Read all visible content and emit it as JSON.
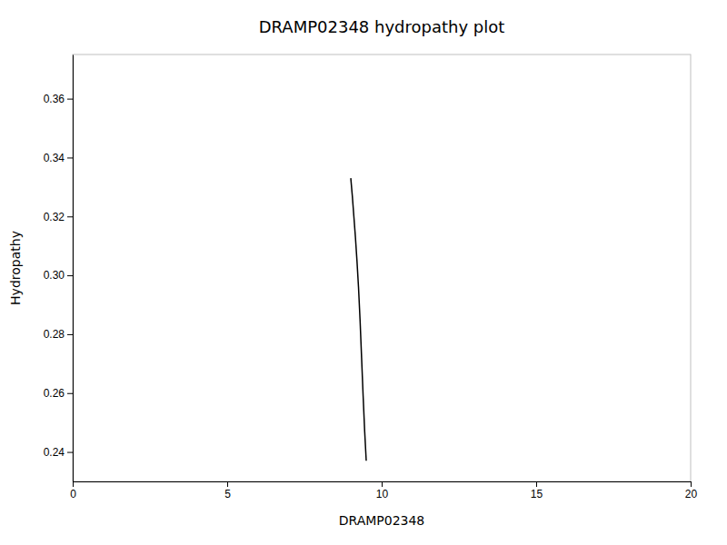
{
  "chart_data": {
    "type": "line",
    "title": "DRAMP02348 hydropathy plot",
    "xlabel": "DRAMP02348",
    "ylabel": "Hydropathy",
    "x": [
      9.0,
      9.05,
      9.1,
      9.15,
      9.2,
      9.25,
      9.3,
      9.35,
      9.4,
      9.45,
      9.5
    ],
    "values": [
      0.333,
      0.327,
      0.32,
      0.313,
      0.305,
      0.296,
      0.285,
      0.272,
      0.259,
      0.247,
      0.237
    ],
    "color": "#000000",
    "xlim": [
      0,
      20
    ],
    "ylim": [
      0.23,
      0.375
    ],
    "xticks": [
      0,
      5,
      10,
      15,
      20
    ],
    "yticks": [
      0.24,
      0.26,
      0.28,
      {
        "value": 0.3,
        "label": "0.30"
      },
      0.32,
      0.34,
      0.36
    ],
    "grid": false
  }
}
